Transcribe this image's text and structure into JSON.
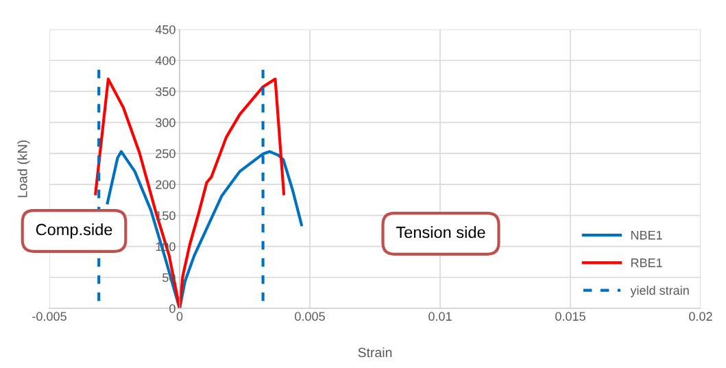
{
  "chart_data": {
    "type": "line",
    "xlabel": "Strain",
    "ylabel": "Load (kN)",
    "xlim": [
      -0.005,
      0.02
    ],
    "xticks": [
      -0.005,
      0,
      0.005,
      0.01,
      0.015,
      0.02
    ],
    "ylim": [
      0,
      450
    ],
    "yticks": [
      0,
      50,
      100,
      150,
      200,
      250,
      300,
      350,
      400,
      450
    ],
    "grid": true,
    "legend": "right",
    "marker": "none",
    "series": [
      {
        "name": "NBE1",
        "color": "#0070c0",
        "line_style": "solid",
        "x": [
          -0.00277,
          -0.00238,
          -0.00224,
          -0.00172,
          -0.0011,
          -0.00058,
          0,
          0.00021,
          0.00056,
          0.001,
          0.00161,
          0.00231,
          0.00319,
          0.00345,
          0.0038,
          0.00398,
          0.00433,
          0.00468
        ],
        "values": [
          170,
          243,
          253,
          221,
          158,
          85,
          0,
          44,
          85,
          125,
          181,
          221,
          249,
          253,
          247,
          240,
          192,
          135
        ]
      },
      {
        "name": "RBE1",
        "color": "#ff0000",
        "line_style": "solid",
        "x": [
          -0.00323,
          -0.00274,
          -0.00216,
          -0.00154,
          -0.00093,
          -0.0004,
          0,
          0.00012,
          0.00039,
          0.00074,
          0.00104,
          0.00122,
          0.00179,
          0.00231,
          0.00319,
          0.00367,
          0.004
        ],
        "values": [
          185,
          370,
          324,
          251,
          158,
          85,
          0,
          52,
          103,
          155,
          203,
          212,
          276,
          313,
          357,
          370,
          185
        ]
      },
      {
        "name": "yield strain",
        "color": "#0070c0",
        "line_style": "dashed",
        "x": [
          -0.0031,
          -0.0031,
          0,
          0.0032,
          0.0032
        ],
        "values": [
          385,
          0,
          null,
          385,
          0
        ]
      }
    ],
    "annotations": [
      "Comp.side",
      "Tension side"
    ]
  }
}
